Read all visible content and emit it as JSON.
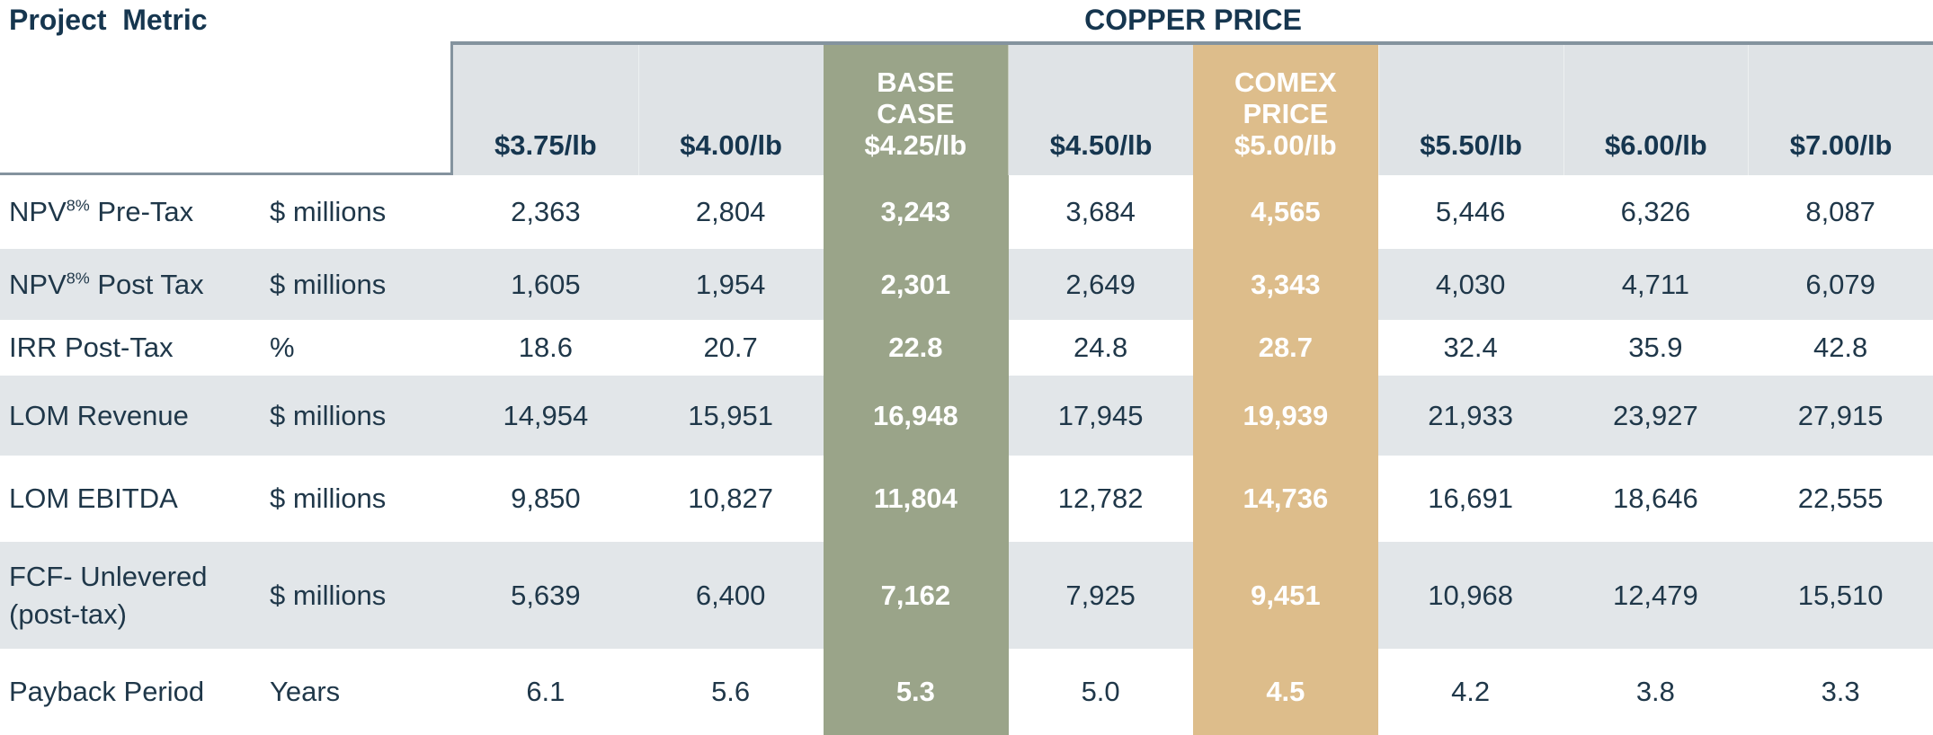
{
  "titles": {
    "project_metric": "Project  Metric",
    "copper_price": "COPPER PRICE"
  },
  "table": {
    "columns": [
      {
        "tag": "",
        "price": "$3.75/lb",
        "highlight": ""
      },
      {
        "tag": "",
        "price": "$4.00/lb",
        "highlight": ""
      },
      {
        "tag": "BASE\nCASE",
        "price": "$4.25/lb",
        "highlight": "green"
      },
      {
        "tag": "",
        "price": "$4.50/lb",
        "highlight": ""
      },
      {
        "tag": "COMEX\nPRICE",
        "price": "$5.00/lb",
        "highlight": "tan"
      },
      {
        "tag": "",
        "price": "$5.50/lb",
        "highlight": ""
      },
      {
        "tag": "",
        "price": "$6.00/lb",
        "highlight": ""
      },
      {
        "tag": "",
        "price": "$7.00/lb",
        "highlight": ""
      }
    ],
    "rows": [
      {
        "metric_base": "NPV",
        "metric_sup": "8%",
        "metric_rest": " Pre-Tax",
        "unit": "$ millions",
        "display": [
          "2,363",
          "2,804",
          "3,243",
          "3,684",
          "4,565",
          "5,446",
          "6,326",
          "8,087"
        ]
      },
      {
        "metric_base": "NPV",
        "metric_sup": "8%",
        "metric_rest": " Post Tax",
        "unit": "$ millions",
        "display": [
          "1,605",
          "1,954",
          "2,301",
          "2,649",
          "3,343",
          "4,030",
          "4,711",
          "6,079"
        ]
      },
      {
        "metric_base": "IRR Post-Tax",
        "metric_sup": "",
        "metric_rest": "",
        "unit": "%",
        "display": [
          "18.6",
          "20.7",
          "22.8",
          "24.8",
          "28.7",
          "32.4",
          "35.9",
          "42.8"
        ]
      },
      {
        "metric_base": "LOM Revenue",
        "metric_sup": "",
        "metric_rest": "",
        "unit": "$ millions",
        "display": [
          "14,954",
          "15,951",
          "16,948",
          "17,945",
          "19,939",
          "21,933",
          "23,927",
          "27,915"
        ]
      },
      {
        "metric_base": "LOM EBITDA",
        "metric_sup": "",
        "metric_rest": "",
        "unit": "$ millions",
        "display": [
          "9,850",
          "10,827",
          "11,804",
          "12,782",
          "14,736",
          "16,691",
          "18,646",
          "22,555"
        ]
      },
      {
        "metric_base": "FCF- Unlevered (post-tax)",
        "metric_sup": "",
        "metric_rest": "",
        "unit": "$ millions",
        "display": [
          "5,639",
          "6,400",
          "7,162",
          "7,925",
          "9,451",
          "10,968",
          "12,479",
          "15,510"
        ]
      },
      {
        "metric_base": "Payback Period",
        "metric_sup": "",
        "metric_rest": "",
        "unit": "Years",
        "display": [
          "6.1",
          "5.6",
          "5.3",
          "5.0",
          "4.5",
          "4.2",
          "3.8",
          "3.3"
        ]
      }
    ]
  },
  "chart_data": {
    "type": "table",
    "title": "COPPER PRICE",
    "row_header": "Project Metric",
    "base_case_column": "$4.25/lb",
    "comex_price_column": "$5.00/lb",
    "columns": [
      "$3.75/lb",
      "$4.00/lb",
      "$4.25/lb (BASE CASE)",
      "$4.50/lb",
      "$5.00/lb (COMEX PRICE)",
      "$5.50/lb",
      "$6.00/lb",
      "$7.00/lb"
    ],
    "rows": [
      {
        "metric": "NPV 8% Pre-Tax",
        "unit": "$ millions",
        "values": [
          2363,
          2804,
          3243,
          3684,
          4565,
          5446,
          6326,
          8087
        ]
      },
      {
        "metric": "NPV 8% Post Tax",
        "unit": "$ millions",
        "values": [
          1605,
          1954,
          2301,
          2649,
          3343,
          4030,
          4711,
          6079
        ]
      },
      {
        "metric": "IRR Post-Tax",
        "unit": "%",
        "values": [
          18.6,
          20.7,
          22.8,
          24.8,
          28.7,
          32.4,
          35.9,
          42.8
        ]
      },
      {
        "metric": "LOM Revenue",
        "unit": "$ millions",
        "values": [
          14954,
          15951,
          16948,
          17945,
          19939,
          21933,
          23927,
          27915
        ]
      },
      {
        "metric": "LOM EBITDA",
        "unit": "$ millions",
        "values": [
          9850,
          10827,
          11804,
          12782,
          14736,
          16691,
          18646,
          22555
        ]
      },
      {
        "metric": "FCF- Unlevered (post-tax)",
        "unit": "$ millions",
        "values": [
          5639,
          6400,
          7162,
          7925,
          9451,
          10968,
          12479,
          15510
        ]
      },
      {
        "metric": "Payback Period",
        "unit": "Years",
        "values": [
          6.1,
          5.6,
          5.3,
          5.0,
          4.5,
          4.2,
          3.8,
          3.3
        ]
      }
    ]
  },
  "colors": {
    "title_navy": "#16364f",
    "text_dark": "#1f3749",
    "header_gray": "#dfe3e6",
    "stripe_gray": "#e2e6e9",
    "green": "#9aa489",
    "tan": "#ddbd8b",
    "border_slate": "#84939e",
    "highlight_text": "#ffffff"
  }
}
